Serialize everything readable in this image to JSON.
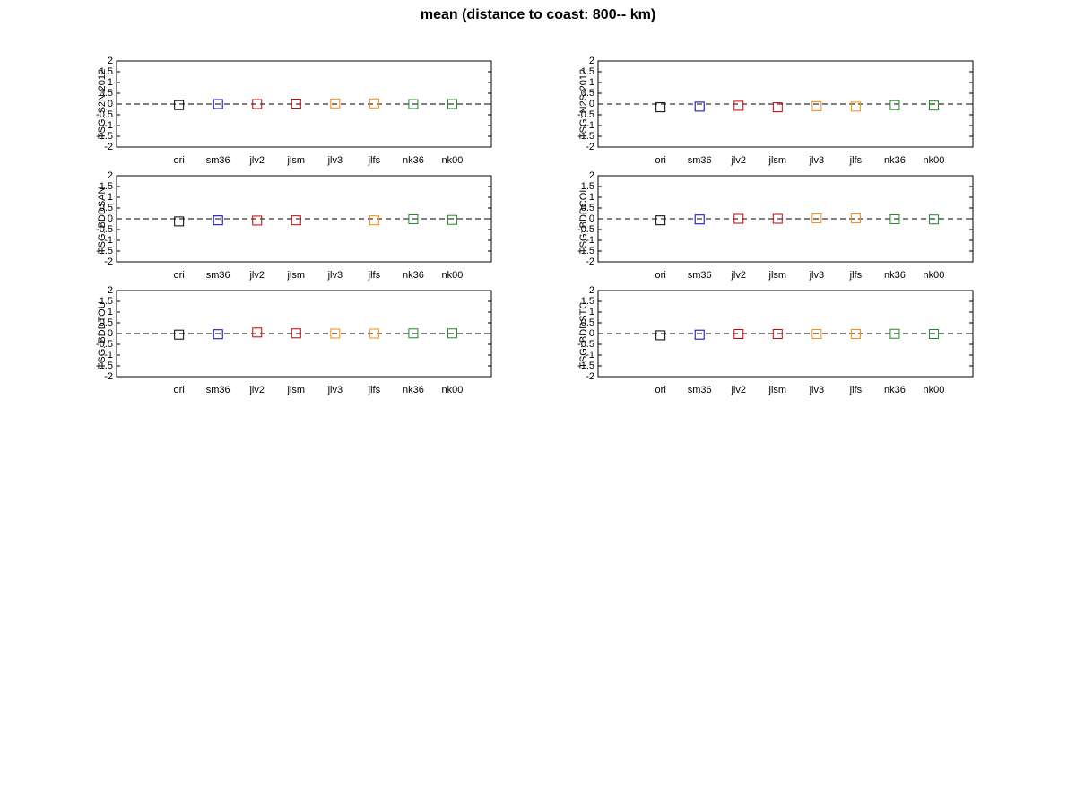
{
  "title": "mean (distance to coast: 800-- km)",
  "chart_data": [
    {
      "type": "scatter",
      "ylabel": "TSG: S2N-2012",
      "categories": [
        "ori",
        "sm36",
        "jlv2",
        "jlsm",
        "jlv3",
        "jlfs",
        "nk36",
        "nk00"
      ],
      "values": [
        -0.05,
        0,
        0,
        0.02,
        0.03,
        0.03,
        0,
        0
      ],
      "colors": [
        "#000000",
        "#0000cc",
        "#cc0000",
        "#cc0000",
        "#ff8800",
        "#ff8800",
        "#228822",
        "#228822"
      ],
      "ylim": [
        -2,
        2
      ],
      "yticks": [
        -2,
        -1.5,
        -1,
        -0.5,
        0,
        0.5,
        1,
        1.5,
        2
      ],
      "hline": 0
    },
    {
      "type": "scatter",
      "ylabel": "TSG: N2S-2012",
      "categories": [
        "ori",
        "sm36",
        "jlv2",
        "jlsm",
        "jlv3",
        "jlfs",
        "nk36",
        "nk00"
      ],
      "values": [
        -0.15,
        -0.12,
        -0.08,
        -0.15,
        -0.1,
        -0.12,
        -0.05,
        -0.07
      ],
      "colors": [
        "#000000",
        "#0000cc",
        "#cc0000",
        "#cc0000",
        "#ff8800",
        "#ff8800",
        "#228822",
        "#228822"
      ],
      "ylim": [
        -2,
        2
      ],
      "yticks": [
        -2,
        -1.5,
        -1,
        -0.5,
        0,
        0.5,
        1,
        1.5,
        2
      ],
      "hline": 0
    },
    {
      "type": "scatter",
      "ylabel": "TSG: BDDSAN-",
      "categories": [
        "ori",
        "sm36",
        "jlv2",
        "jlsm",
        "jlv3",
        "jlfs",
        "nk36",
        "nk00"
      ],
      "values": [
        -0.12,
        -0.07,
        -0.08,
        -0.07,
        null,
        -0.07,
        -0.02,
        -0.05
      ],
      "colors": [
        "#000000",
        "#0000cc",
        "#cc0000",
        "#cc0000",
        "#ff8800",
        "#ff8800",
        "#228822",
        "#228822"
      ],
      "ylim": [
        -2,
        2
      ],
      "yticks": [
        -2,
        -1.5,
        -1,
        -0.5,
        0,
        0.5,
        1,
        1.5,
        2
      ],
      "hline": 0
    },
    {
      "type": "scatter",
      "ylabel": "TSG: BDDCOL-",
      "categories": [
        "ori",
        "sm36",
        "jlv2",
        "jlsm",
        "jlv3",
        "jlfs",
        "nk36",
        "nk00"
      ],
      "values": [
        -0.07,
        -0.03,
        0,
        0,
        0.02,
        0.02,
        -0.02,
        -0.03
      ],
      "colors": [
        "#000000",
        "#0000cc",
        "#cc0000",
        "#cc0000",
        "#ff8800",
        "#ff8800",
        "#228822",
        "#228822"
      ],
      "ylim": [
        -2,
        2
      ],
      "yticks": [
        -2,
        -1.5,
        -1,
        -0.5,
        0,
        0.5,
        1,
        1.5,
        2
      ],
      "hline": 0
    },
    {
      "type": "scatter",
      "ylabel": "TSG: BDDTOU-",
      "categories": [
        "ori",
        "sm36",
        "jlv2",
        "jlsm",
        "jlv3",
        "jlfs",
        "nk36",
        "nk00"
      ],
      "values": [
        -0.05,
        -0.03,
        0.05,
        0.01,
        0,
        0,
        0.01,
        0.01
      ],
      "colors": [
        "#000000",
        "#0000cc",
        "#cc0000",
        "#cc0000",
        "#ff8800",
        "#ff8800",
        "#228822",
        "#228822"
      ],
      "ylim": [
        -2,
        2
      ],
      "yticks": [
        -2,
        -1.5,
        -1,
        -0.5,
        0,
        0.5,
        1,
        1.5,
        2
      ],
      "hline": 0
    },
    {
      "type": "scatter",
      "ylabel": "TSG: BDDSTC-",
      "categories": [
        "ori",
        "sm36",
        "jlv2",
        "jlsm",
        "jlv3",
        "jlfs",
        "nk36",
        "nk00"
      ],
      "values": [
        -0.08,
        -0.05,
        -0.02,
        -0.02,
        -0.02,
        -0.02,
        -0.01,
        -0.02
      ],
      "colors": [
        "#000000",
        "#0000cc",
        "#cc0000",
        "#cc0000",
        "#ff8800",
        "#ff8800",
        "#228822",
        "#228822"
      ],
      "ylim": [
        -2,
        2
      ],
      "yticks": [
        -2,
        -1.5,
        -1,
        -0.5,
        0,
        0.5,
        1,
        1.5,
        2
      ],
      "hline": 0
    }
  ]
}
